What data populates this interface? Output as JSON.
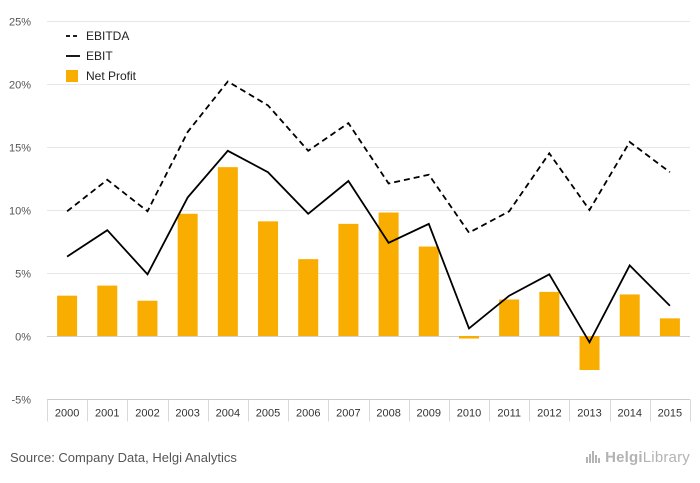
{
  "chart_data": {
    "type": "bar",
    "categories": [
      "2000",
      "2001",
      "2002",
      "2003",
      "2004",
      "2005",
      "2006",
      "2007",
      "2008",
      "2009",
      "2010",
      "2011",
      "2012",
      "2013",
      "2014",
      "2015"
    ],
    "series": [
      {
        "name": "EBITDA",
        "kind": "line",
        "style": "dashed",
        "color": "#000000",
        "values": [
          9.9,
          12.4,
          9.9,
          16.2,
          20.2,
          18.3,
          14.7,
          16.9,
          12.1,
          12.8,
          8.2,
          9.9,
          14.5,
          10.0,
          15.4,
          13.0
        ]
      },
      {
        "name": "EBIT",
        "kind": "line",
        "style": "solid",
        "color": "#000000",
        "values": [
          6.3,
          8.4,
          4.9,
          11.0,
          14.7,
          13.0,
          9.7,
          12.3,
          7.4,
          8.9,
          0.6,
          3.2,
          4.9,
          -0.5,
          5.6,
          2.4
        ]
      },
      {
        "name": "Net Profit",
        "kind": "bar",
        "color": "#f9ad00",
        "values": [
          3.2,
          4.0,
          2.8,
          9.7,
          13.4,
          9.1,
          6.1,
          8.9,
          9.8,
          7.1,
          -0.2,
          2.9,
          3.5,
          -2.7,
          3.3,
          1.4
        ]
      }
    ],
    "ylim": [
      -5,
      25
    ],
    "yticks": [
      -5,
      0,
      5,
      10,
      15,
      20,
      25
    ],
    "ytick_labels": [
      "-5%",
      "0%",
      "5%",
      "10%",
      "15%",
      "20%",
      "25%"
    ],
    "title": "",
    "xlabel": "",
    "ylabel": "",
    "grid": true,
    "legend": "top-left"
  },
  "footer": {
    "source": "Source: Company Data, Helgi Analytics",
    "brand_bold": "Helgi",
    "brand_rest": "Library"
  }
}
